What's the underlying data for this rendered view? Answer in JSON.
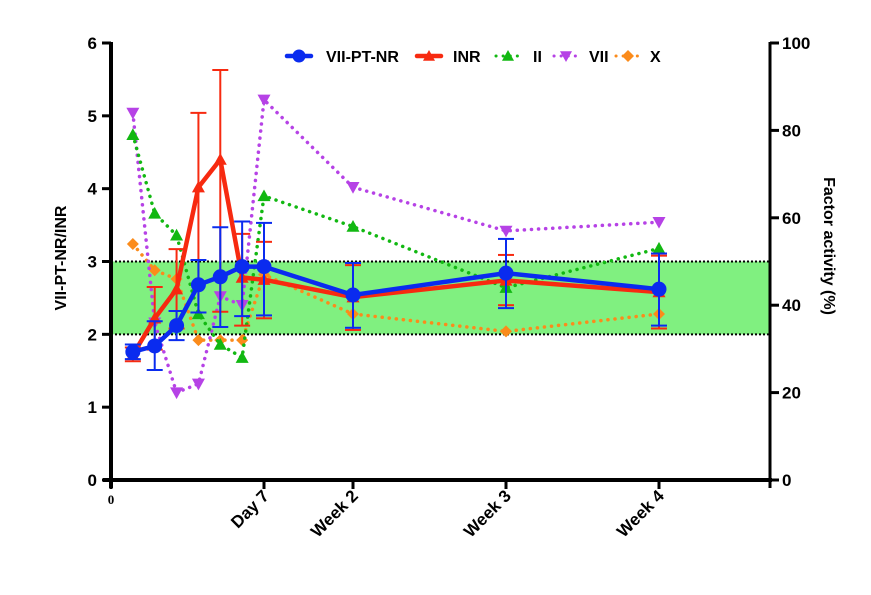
{
  "chart_data": {
    "type": "line",
    "title": "",
    "xlabel": "",
    "ylabel_left": "VII-PT-NR/INR",
    "ylabel_right": "Factor activity (%)",
    "ylim_left": [
      0,
      6
    ],
    "ylim_right": [
      0,
      100
    ],
    "yticks_left": [
      0,
      1,
      2,
      3,
      4,
      5,
      6
    ],
    "yticks_right": [
      0,
      20,
      40,
      60,
      80,
      100
    ],
    "x_ticks": [
      {
        "x": 0,
        "label": "0"
      },
      {
        "x": 7,
        "label": "Day 7"
      },
      {
        "x": 14,
        "label": "Week 2"
      },
      {
        "x": 21,
        "label": "Week 3"
      },
      {
        "x": 28,
        "label": "Week 4"
      }
    ],
    "xlim": [
      0,
      32
    ],
    "target_range": {
      "axis": "left",
      "low": 2,
      "high": 3,
      "color": "#80f080"
    },
    "legend": {
      "placement": "top",
      "entries": [
        "VII-PT-NR",
        "INR",
        "II",
        "VII",
        "X"
      ]
    },
    "series": [
      {
        "name": "VII-PT-NR",
        "axis": "left",
        "color": "#0a2bef",
        "style": "solid",
        "marker": "circle",
        "x": [
          1,
          2,
          3,
          4,
          5,
          6,
          7,
          14,
          21,
          28
        ],
        "y": [
          1.76,
          1.84,
          2.12,
          2.68,
          2.79,
          2.93,
          2.93,
          2.54,
          2.84,
          2.62
        ],
        "err_low": [
          1.66,
          1.51,
          1.92,
          2.3,
          2.1,
          2.25,
          2.26,
          2.09,
          2.36,
          2.12
        ],
        "err_high": [
          1.86,
          2.18,
          2.32,
          3.02,
          3.47,
          3.55,
          3.53,
          2.98,
          3.31,
          3.11
        ]
      },
      {
        "name": "INR",
        "axis": "left",
        "color": "#f72a10",
        "style": "solid",
        "marker": "triangle-up",
        "x": [
          1,
          2,
          3,
          4,
          5,
          6,
          7,
          14,
          21,
          28
        ],
        "y": [
          1.72,
          2.22,
          2.62,
          4.02,
          4.4,
          2.78,
          2.75,
          2.51,
          2.74,
          2.58
        ],
        "err_low": [
          1.63,
          1.79,
          2.08,
          2.3,
          2.31,
          2.12,
          2.22,
          2.06,
          2.4,
          2.08
        ],
        "err_high": [
          1.82,
          2.65,
          3.17,
          5.04,
          5.63,
          3.38,
          3.27,
          2.95,
          3.09,
          3.08
        ]
      },
      {
        "name": "II",
        "axis": "right",
        "color": "#12b812",
        "style": "dotted",
        "marker": "triangle-up",
        "x": [
          1,
          2,
          3,
          4,
          5,
          6,
          7,
          14,
          21,
          28
        ],
        "y": [
          79,
          61,
          56,
          38,
          31,
          28,
          65,
          58,
          44,
          53
        ]
      },
      {
        "name": "VII",
        "axis": "right",
        "color": "#b642e6",
        "style": "dotted",
        "marker": "triangle-down",
        "x": [
          1,
          2,
          3,
          4,
          5,
          6,
          7,
          14,
          21,
          28
        ],
        "y": [
          84,
          36,
          20,
          22,
          42,
          40,
          87,
          67,
          57,
          59
        ]
      },
      {
        "name": "X",
        "axis": "right",
        "color": "#fb8b1b",
        "style": "dotted",
        "marker": "diamond",
        "x": [
          1,
          2,
          3,
          4,
          5,
          6,
          7,
          14,
          21,
          28
        ],
        "y": [
          54,
          48,
          46,
          32,
          32,
          32,
          47,
          38,
          34,
          38
        ]
      }
    ]
  }
}
